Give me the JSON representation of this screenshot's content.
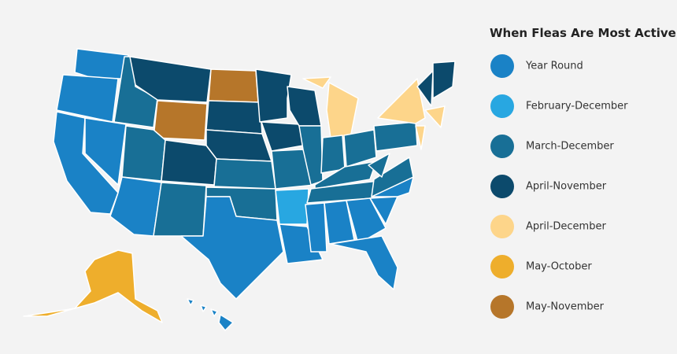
{
  "legend": {
    "title": "When Fleas Are Most Active",
    "items": [
      {
        "label": "Year Round",
        "color": "#1a82c6"
      },
      {
        "label": "February-December",
        "color": "#28a7e1"
      },
      {
        "label": "March-December",
        "color": "#186f96"
      },
      {
        "label": "April-November",
        "color": "#0c4a6c"
      },
      {
        "label": "April-December",
        "color": "#fdd58a"
      },
      {
        "label": "May-October",
        "color": "#eeae2c"
      },
      {
        "label": "May-November",
        "color": "#b6762a"
      }
    ]
  }
}
